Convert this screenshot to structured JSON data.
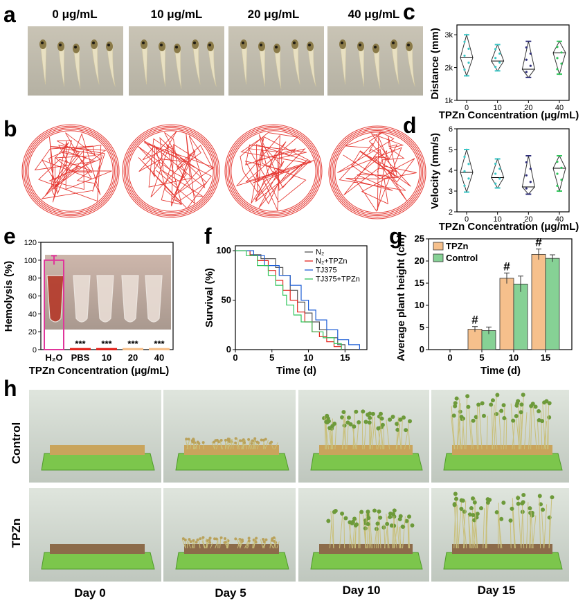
{
  "panel_labels": {
    "a": "a",
    "b": "b",
    "c": "c",
    "d": "d",
    "e": "e",
    "f": "f",
    "g": "g",
    "h": "h"
  },
  "concentration_headers": [
    "0 μg/mL",
    "10 μg/mL",
    "20 μg/mL",
    "40 μg/mL"
  ],
  "colors": {
    "red": "#e3261f",
    "cyan": "#39c6c6",
    "purple": "#2e2e7a",
    "green": "#2fc45a",
    "orange": "#f6c08c",
    "mint": "#86d195",
    "magenta": "#e0359b",
    "blue": "#1f5fd6"
  },
  "plant_photos": {
    "row_labels": [
      "Control",
      "TPZn"
    ],
    "day_labels": [
      "Day 0",
      "Day 5",
      "Day 10",
      "Day 15"
    ]
  },
  "chart_data": [
    {
      "id": "c",
      "type": "violin",
      "xlabel": "TPZn Concentration (μg/mL)",
      "ylabel": "Distance (mm)",
      "categories": [
        "0",
        "10",
        "20",
        "40"
      ],
      "yticks": [
        "1k",
        "2k",
        "3k"
      ],
      "ylim": [
        1000,
        3300
      ],
      "medians": [
        2300,
        2200,
        1950,
        2450
      ],
      "ranges": [
        [
          1750,
          3000
        ],
        [
          1900,
          2700
        ],
        [
          1700,
          2800
        ],
        [
          1800,
          2800
        ]
      ]
    },
    {
      "id": "d",
      "type": "violin",
      "xlabel": "TPZn Concentration (μg/mL)",
      "ylabel": "Velocity (mm/s)",
      "categories": [
        "0",
        "10",
        "20",
        "40"
      ],
      "yticks": [
        "2",
        "3",
        "4",
        "5",
        "6"
      ],
      "ylim": [
        2,
        6
      ],
      "medians": [
        3.9,
        3.65,
        3.2,
        4.1
      ],
      "ranges": [
        [
          2.95,
          5.0
        ],
        [
          3.15,
          4.55
        ],
        [
          2.85,
          4.7
        ],
        [
          3.0,
          4.7
        ]
      ]
    },
    {
      "id": "e",
      "type": "bar",
      "xlabel": "TPZn Concentration (μg/mL)",
      "ylabel": "Hemolysis (%)",
      "categories": [
        "H₂O",
        "PBS",
        "10",
        "20",
        "40"
      ],
      "values": [
        100,
        1,
        1,
        1,
        1
      ],
      "errors": [
        5,
        0,
        0,
        0,
        0
      ],
      "significance": [
        "",
        "***",
        "***",
        "***",
        "***"
      ],
      "yticks": [
        "0",
        "20",
        "40",
        "60",
        "80",
        "100",
        "120"
      ],
      "ylim": [
        0,
        120
      ]
    },
    {
      "id": "f",
      "type": "line",
      "xlabel": "Time (d)",
      "ylabel": "Survival (%)",
      "xticks": [
        "0",
        "5",
        "10",
        "15"
      ],
      "xlim": [
        0,
        18
      ],
      "yticks": [
        "0",
        "50",
        "100"
      ],
      "ylim": [
        0,
        105
      ],
      "series": [
        {
          "name": "N₂",
          "color": "#555555",
          "points": [
            [
              0,
              100
            ],
            [
              2,
              100
            ],
            [
              2,
              96
            ],
            [
              3.5,
              96
            ],
            [
              3.5,
              92
            ],
            [
              5.5,
              92
            ],
            [
              5.5,
              83
            ],
            [
              6.5,
              83
            ],
            [
              6.5,
              75
            ],
            [
              7.5,
              75
            ],
            [
              7.5,
              60
            ],
            [
              8.5,
              60
            ],
            [
              8.5,
              48
            ],
            [
              9.5,
              48
            ],
            [
              9.5,
              37
            ],
            [
              10.5,
              37
            ],
            [
              10.5,
              28
            ],
            [
              11.5,
              28
            ],
            [
              11.5,
              20
            ],
            [
              12.5,
              20
            ],
            [
              12.5,
              12
            ],
            [
              14,
              12
            ],
            [
              14,
              5
            ],
            [
              15,
              5
            ],
            [
              15,
              0
            ]
          ]
        },
        {
          "name": "N₂+TPZn",
          "color": "#e3261f",
          "points": [
            [
              0,
              100
            ],
            [
              2,
              100
            ],
            [
              2,
              95
            ],
            [
              3,
              95
            ],
            [
              3,
              90
            ],
            [
              4.5,
              90
            ],
            [
              4.5,
              80
            ],
            [
              5.5,
              80
            ],
            [
              5.5,
              70
            ],
            [
              6.5,
              70
            ],
            [
              6.5,
              60
            ],
            [
              7.5,
              60
            ],
            [
              7.5,
              50
            ],
            [
              8.5,
              50
            ],
            [
              8.5,
              38
            ],
            [
              9.5,
              38
            ],
            [
              9.5,
              28
            ],
            [
              10.5,
              28
            ],
            [
              10.5,
              18
            ],
            [
              11.5,
              18
            ],
            [
              11.5,
              13
            ],
            [
              12.5,
              13
            ],
            [
              12.5,
              8
            ],
            [
              13.5,
              8
            ],
            [
              13.5,
              3
            ],
            [
              14.5,
              3
            ],
            [
              14.5,
              0
            ]
          ]
        },
        {
          "name": "TJ375",
          "color": "#1f5fd6",
          "points": [
            [
              0,
              100
            ],
            [
              2.5,
              100
            ],
            [
              2.5,
              95
            ],
            [
              4,
              95
            ],
            [
              4,
              85
            ],
            [
              6,
              85
            ],
            [
              6,
              75
            ],
            [
              7.5,
              75
            ],
            [
              7.5,
              65
            ],
            [
              9,
              65
            ],
            [
              9,
              50
            ],
            [
              10,
              50
            ],
            [
              10,
              40
            ],
            [
              11,
              40
            ],
            [
              11,
              30
            ],
            [
              12.5,
              30
            ],
            [
              12.5,
              20
            ],
            [
              14,
              20
            ],
            [
              14,
              10
            ],
            [
              15.5,
              10
            ],
            [
              15.5,
              5
            ],
            [
              17,
              5
            ],
            [
              17,
              0
            ]
          ]
        },
        {
          "name": "TJ375+TPZn",
          "color": "#2fc45a",
          "points": [
            [
              0,
              100
            ],
            [
              1.5,
              100
            ],
            [
              1.5,
              95
            ],
            [
              3,
              95
            ],
            [
              3,
              85
            ],
            [
              4.5,
              85
            ],
            [
              4.5,
              75
            ],
            [
              5.5,
              75
            ],
            [
              5.5,
              65
            ],
            [
              6.5,
              65
            ],
            [
              6.5,
              55
            ],
            [
              7,
              55
            ],
            [
              7,
              45
            ],
            [
              8,
              45
            ],
            [
              8,
              35
            ],
            [
              9,
              35
            ],
            [
              9,
              28
            ],
            [
              10.5,
              28
            ],
            [
              10.5,
              18
            ],
            [
              12,
              18
            ],
            [
              12,
              12
            ],
            [
              13.5,
              12
            ],
            [
              13.5,
              6
            ],
            [
              14.5,
              6
            ],
            [
              14.5,
              0
            ]
          ]
        }
      ]
    },
    {
      "id": "g",
      "type": "bar",
      "xlabel": "Time (d)",
      "ylabel": "Average plant height (cm)",
      "categories": [
        "0",
        "5",
        "10",
        "15"
      ],
      "series": [
        {
          "name": "TPZn",
          "values": [
            0,
            4.6,
            16.1,
            21.5
          ],
          "errors": [
            0,
            0.6,
            1.2,
            1.2
          ]
        },
        {
          "name": "Control",
          "values": [
            0,
            4.3,
            14.8,
            20.6
          ],
          "errors": [
            0,
            0.8,
            1.8,
            0.8
          ]
        }
      ],
      "significance": [
        "",
        "#",
        "#",
        "#"
      ],
      "yticks": [
        "0",
        "5",
        "10",
        "15",
        "20",
        "25"
      ],
      "ylim": [
        0,
        25
      ]
    }
  ]
}
